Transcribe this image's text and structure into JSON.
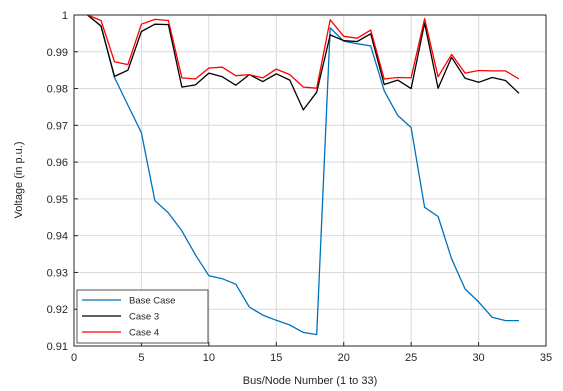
{
  "chart_data": {
    "type": "line",
    "title": "",
    "xlabel": "Bus/Node Number (1 to 33)",
    "ylabel": "Voltage (in p.u.)",
    "xlim": [
      0,
      35
    ],
    "ylim": [
      0.91,
      1.0
    ],
    "xticks": [
      0,
      5,
      10,
      15,
      20,
      25,
      30,
      35
    ],
    "yticks": [
      0.91,
      0.92,
      0.93,
      0.94,
      0.95,
      0.96,
      0.97,
      0.98,
      0.99,
      1
    ],
    "xtick_labels": [
      "0",
      "5",
      "10",
      "15",
      "20",
      "25",
      "30",
      "35"
    ],
    "ytick_labels": [
      "0.91",
      "0.92",
      "0.93",
      "0.94",
      "0.95",
      "0.96",
      "0.97",
      "0.98",
      "0.99",
      "1"
    ],
    "grid": true,
    "legend_position": "bottom-left",
    "x": [
      1,
      2,
      3,
      4,
      5,
      6,
      7,
      8,
      9,
      10,
      11,
      12,
      13,
      14,
      15,
      16,
      17,
      18,
      19,
      20,
      21,
      22,
      23,
      24,
      25,
      26,
      27,
      28,
      29,
      30,
      31,
      32,
      33
    ],
    "series": [
      {
        "name": "Base Case",
        "color": "#0072BD",
        "values": [
          1.0,
          0.997,
          0.983,
          0.9755,
          0.968,
          0.9495,
          0.9462,
          0.9413,
          0.9348,
          0.9291,
          0.9283,
          0.9268,
          0.9206,
          0.9184,
          0.917,
          0.9157,
          0.9137,
          0.9131,
          0.9965,
          0.9929,
          0.9922,
          0.9916,
          0.9794,
          0.9727,
          0.9694,
          0.9477,
          0.9452,
          0.9337,
          0.9255,
          0.922,
          0.9178,
          0.9169,
          0.9169
        ]
      },
      {
        "name": "Case 3",
        "color": "#000000",
        "values": [
          1.0,
          0.997,
          0.9833,
          0.985,
          0.9955,
          0.9975,
          0.9974,
          0.9804,
          0.981,
          0.9842,
          0.9832,
          0.9809,
          0.9838,
          0.9819,
          0.984,
          0.9823,
          0.9742,
          0.979,
          0.9946,
          0.993,
          0.9928,
          0.9949,
          0.9811,
          0.9823,
          0.98,
          0.9978,
          0.9801,
          0.9885,
          0.9828,
          0.9817,
          0.983,
          0.9822,
          0.9787
        ]
      },
      {
        "name": "Case 4",
        "color": "#FF0000",
        "values": [
          1.0,
          0.9985,
          0.9873,
          0.9865,
          0.9975,
          0.9988,
          0.9985,
          0.9829,
          0.9826,
          0.9856,
          0.9858,
          0.9835,
          0.9838,
          0.9829,
          0.9853,
          0.9838,
          0.9804,
          0.9801,
          0.9987,
          0.9942,
          0.9937,
          0.9959,
          0.9826,
          0.983,
          0.9829,
          0.999,
          0.9832,
          0.9893,
          0.9842,
          0.9849,
          0.9848,
          0.9848,
          0.9826
        ]
      }
    ]
  }
}
